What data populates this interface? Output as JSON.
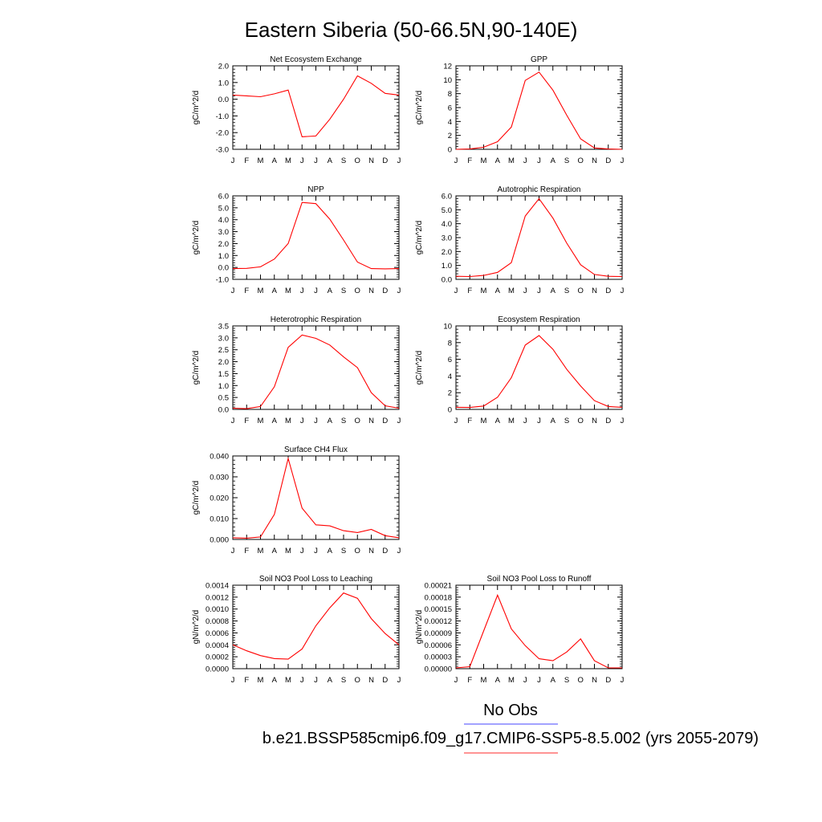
{
  "title": "Eastern Siberia (50-66.5N,90-140E)",
  "legend": {
    "items": [
      {
        "label": "No Obs",
        "color": "#6b6bff"
      },
      {
        "label": "b.e21.BSSP585cmip6.f09_g17.CMIP6-SSP5-8.5.002 (yrs 2055-2079)",
        "color": "#ff5555"
      }
    ]
  },
  "colors": {
    "series": "#ff0000",
    "axis": "#000000"
  },
  "chart_data": [
    {
      "type": "line",
      "title": "Net Ecosystem Exchange",
      "ylabel": "gC/m^2/d",
      "categories": [
        "J",
        "F",
        "M",
        "A",
        "M",
        "J",
        "J",
        "A",
        "S",
        "O",
        "N",
        "D",
        "J"
      ],
      "ylim": [
        -3.0,
        2.0
      ],
      "yticks": [
        -3.0,
        -2.0,
        -1.0,
        0.0,
        1.0,
        2.0
      ],
      "ytick_labels": [
        "-3.0",
        "-2.0",
        "-1.0",
        "0.0",
        "1.0",
        "2.0"
      ],
      "values": [
        0.25,
        0.2,
        0.15,
        0.32,
        0.55,
        -2.25,
        -2.2,
        -1.2,
        0.0,
        1.4,
        0.95,
        0.35,
        0.25
      ]
    },
    {
      "type": "line",
      "title": "GPP",
      "ylabel": "gC/m^2/d",
      "categories": [
        "J",
        "F",
        "M",
        "A",
        "M",
        "J",
        "J",
        "A",
        "S",
        "O",
        "N",
        "D",
        "J"
      ],
      "ylim": [
        0,
        12
      ],
      "yticks": [
        0,
        2,
        4,
        6,
        8,
        10,
        12
      ],
      "ytick_labels": [
        "0",
        "2",
        "4",
        "6",
        "8",
        "10",
        "12"
      ],
      "values": [
        0.0,
        0.05,
        0.3,
        1.1,
        3.2,
        9.9,
        11.1,
        8.5,
        4.9,
        1.5,
        0.2,
        0.05,
        0.0
      ]
    },
    {
      "type": "line",
      "title": "NPP",
      "ylabel": "gC/m^2/d",
      "categories": [
        "J",
        "F",
        "M",
        "A",
        "M",
        "J",
        "J",
        "A",
        "S",
        "O",
        "N",
        "D",
        "J"
      ],
      "ylim": [
        -1.0,
        6.0
      ],
      "yticks": [
        -1.0,
        0.0,
        1.0,
        2.0,
        3.0,
        4.0,
        5.0,
        6.0
      ],
      "ytick_labels": [
        "-1.0",
        "0.0",
        "1.0",
        "2.0",
        "3.0",
        "4.0",
        "5.0",
        "6.0"
      ],
      "values": [
        -0.1,
        -0.08,
        0.05,
        0.7,
        2.0,
        5.45,
        5.35,
        4.05,
        2.3,
        0.45,
        -0.1,
        -0.12,
        -0.1
      ]
    },
    {
      "type": "line",
      "title": "Autotrophic Respiration",
      "ylabel": "gC/m^2/d",
      "categories": [
        "J",
        "F",
        "M",
        "A",
        "M",
        "J",
        "J",
        "A",
        "S",
        "O",
        "N",
        "D",
        "J"
      ],
      "ylim": [
        0.0,
        6.0
      ],
      "yticks": [
        0.0,
        1.0,
        2.0,
        3.0,
        4.0,
        5.0,
        6.0
      ],
      "ytick_labels": [
        "0.0",
        "1.0",
        "2.0",
        "3.0",
        "4.0",
        "5.0",
        "6.0"
      ],
      "values": [
        0.22,
        0.2,
        0.28,
        0.5,
        1.2,
        4.55,
        5.8,
        4.4,
        2.6,
        1.05,
        0.35,
        0.22,
        0.2
      ]
    },
    {
      "type": "line",
      "title": "Heterotrophic Respiration",
      "ylabel": "gC/m^2/d",
      "categories": [
        "J",
        "F",
        "M",
        "A",
        "M",
        "J",
        "J",
        "A",
        "S",
        "O",
        "N",
        "D",
        "J"
      ],
      "ylim": [
        0.0,
        3.5
      ],
      "yticks": [
        0.0,
        0.5,
        1.0,
        1.5,
        2.0,
        2.5,
        3.0,
        3.5
      ],
      "ytick_labels": [
        "0.0",
        "0.5",
        "1.0",
        "1.5",
        "2.0",
        "2.5",
        "3.0",
        "3.5"
      ],
      "values": [
        0.05,
        0.03,
        0.12,
        0.95,
        2.6,
        3.12,
        2.98,
        2.7,
        2.2,
        1.75,
        0.7,
        0.15,
        0.05
      ]
    },
    {
      "type": "line",
      "title": "Ecosystem Respiration",
      "ylabel": "gC/m^2/d",
      "categories": [
        "J",
        "F",
        "M",
        "A",
        "M",
        "J",
        "J",
        "A",
        "S",
        "O",
        "N",
        "D",
        "J"
      ],
      "ylim": [
        0,
        10
      ],
      "yticks": [
        0,
        2,
        4,
        6,
        8,
        10
      ],
      "ytick_labels": [
        "0",
        "2",
        "4",
        "6",
        "8",
        "10"
      ],
      "values": [
        0.25,
        0.23,
        0.4,
        1.45,
        3.8,
        7.7,
        8.85,
        7.2,
        4.8,
        2.8,
        1.05,
        0.35,
        0.25
      ]
    },
    {
      "type": "line",
      "title": "Surface CH4 Flux",
      "ylabel": "gC/m^2/d",
      "categories": [
        "J",
        "F",
        "M",
        "A",
        "M",
        "J",
        "J",
        "A",
        "S",
        "O",
        "N",
        "D",
        "J"
      ],
      "ylim": [
        0.0,
        0.04
      ],
      "yticks": [
        0.0,
        0.01,
        0.02,
        0.03,
        0.04
      ],
      "ytick_labels": [
        "0.000",
        "0.010",
        "0.020",
        "0.030",
        "0.040"
      ],
      "values": [
        0.0008,
        0.0006,
        0.0012,
        0.012,
        0.0388,
        0.015,
        0.007,
        0.0065,
        0.0042,
        0.0033,
        0.0048,
        0.0018,
        0.0008
      ]
    },
    {
      "type": "line",
      "title": "Soil NO3 Pool Loss to Leaching",
      "ylabel": "gN/m^2/d",
      "categories": [
        "J",
        "F",
        "M",
        "A",
        "M",
        "J",
        "J",
        "A",
        "S",
        "O",
        "N",
        "D",
        "J"
      ],
      "ylim": [
        0.0,
        0.0014
      ],
      "yticks": [
        0.0,
        0.0002,
        0.0004,
        0.0006,
        0.0008,
        0.001,
        0.0012,
        0.0014
      ],
      "ytick_labels": [
        "0.0000",
        "0.0002",
        "0.0004",
        "0.0006",
        "0.0008",
        "0.0010",
        "0.0012",
        "0.0014"
      ],
      "values": [
        0.0004,
        0.0003,
        0.00022,
        0.00017,
        0.00016,
        0.00033,
        0.00072,
        0.00102,
        0.00127,
        0.00118,
        0.00084,
        0.00059,
        0.0004
      ]
    },
    {
      "type": "line",
      "title": "Soil NO3 Pool Loss to Runoff",
      "ylabel": "gN/m^2/d",
      "categories": [
        "J",
        "F",
        "M",
        "A",
        "M",
        "J",
        "J",
        "A",
        "S",
        "O",
        "N",
        "D",
        "J"
      ],
      "ylim": [
        0.0,
        0.00021
      ],
      "yticks": [
        0.0,
        3e-05,
        6e-05,
        9e-05,
        0.00012,
        0.00015,
        0.00018,
        0.00021
      ],
      "ytick_labels": [
        "0.00000",
        "0.00003",
        "0.00006",
        "0.00009",
        "0.00012",
        "0.00015",
        "0.00018",
        "0.00021"
      ],
      "values": [
        2e-06,
        5e-06,
        9.5e-05,
        0.000185,
        0.0001,
        5.8e-05,
        2.5e-05,
        2e-05,
        4.2e-05,
        7.5e-05,
        2e-05,
        2e-06,
        2e-06
      ]
    }
  ]
}
